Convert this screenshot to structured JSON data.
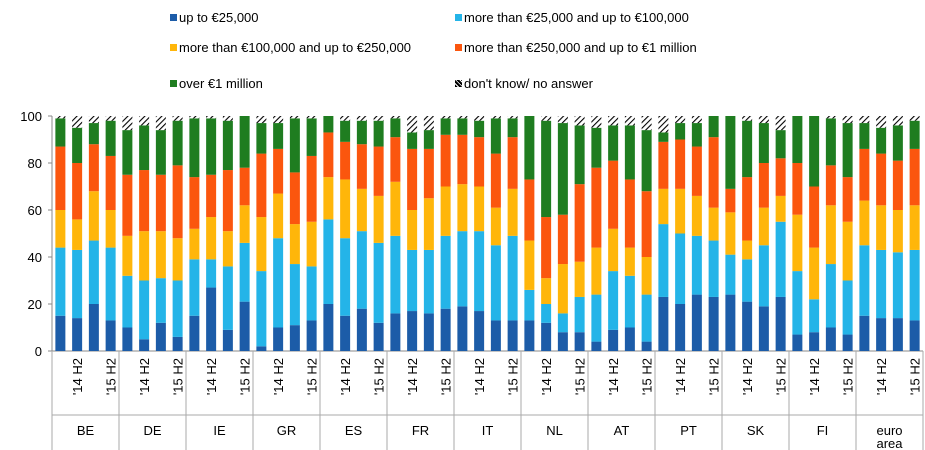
{
  "chart_data": {
    "type": "stacked_bar",
    "categories": [
      null,
      "'14 H2",
      null,
      "'15 H2",
      null,
      "'14 H2",
      null,
      "'15 H2",
      null,
      "'14 H2",
      null,
      "'15 H2",
      null,
      "'14 H2",
      null,
      "'15 H2",
      null,
      "'14 H2",
      null,
      "'15 H2",
      null,
      "'14 H2",
      null,
      "'15 H2",
      null,
      "'14 H2",
      null,
      "'15 H2",
      null,
      "'14 H2",
      null,
      "'15 H2",
      null,
      "'14 H2",
      null,
      "'15 H2",
      null,
      "'14 H2",
      null,
      "'15 H2",
      null,
      "'14 H2",
      null,
      "'15 H2",
      null,
      "'14 H2",
      null,
      "'15 H2",
      null,
      "'14 H2",
      null,
      "'15 H2"
    ],
    "groups": [
      "BE",
      "DE",
      "IE",
      "GR",
      "ES",
      "FR",
      "IT",
      "NL",
      "AT",
      "PT",
      "SK",
      "FI",
      "euro area"
    ],
    "ylim": [
      0,
      100
    ],
    "yticks": [
      0,
      20,
      40,
      60,
      80,
      100
    ],
    "grid": false,
    "series": [
      {
        "name": "up to €25,000",
        "color": "#1c5ca8",
        "values": [
          15,
          14,
          20,
          13,
          10,
          5,
          12,
          6,
          15,
          27,
          9,
          21,
          2,
          10,
          11,
          13,
          20,
          15,
          18,
          12,
          16,
          17,
          16,
          18,
          19,
          17,
          13,
          13,
          13,
          12,
          8,
          8,
          4,
          9,
          10,
          4,
          23,
          20,
          24,
          23,
          24,
          21,
          19,
          23,
          7,
          8,
          10,
          7,
          15,
          14,
          14,
          13
        ]
      },
      {
        "name": "more than €25,000 and up to €100,000",
        "color": "#24b4e8",
        "values": [
          29,
          29,
          27,
          31,
          22,
          25,
          19,
          24,
          24,
          12,
          27,
          25,
          32,
          38,
          26,
          23,
          36,
          33,
          33,
          34,
          33,
          26,
          27,
          31,
          32,
          34,
          32,
          36,
          13,
          8,
          8,
          15,
          20,
          25,
          22,
          20,
          31,
          30,
          25,
          24,
          17,
          18,
          26,
          32,
          27,
          14,
          27,
          23,
          30,
          29,
          28,
          30
        ]
      },
      {
        "name": "more than €100,000 and up to €250,000",
        "color": "#ffb60a",
        "values": [
          16,
          13,
          21,
          16,
          17,
          21,
          20,
          18,
          13,
          18,
          15,
          16,
          23,
          19,
          17,
          19,
          18,
          25,
          18,
          20,
          23,
          17,
          22,
          21,
          20,
          19,
          16,
          20,
          21,
          11,
          21,
          15,
          20,
          18,
          12,
          16,
          15,
          19,
          17,
          14,
          18,
          8,
          16,
          11,
          24,
          22,
          25,
          25,
          19,
          19,
          18,
          19
        ]
      },
      {
        "name": "more than €250,000 and up to €1 million",
        "color": "#fb560e",
        "values": [
          27,
          24,
          20,
          23,
          26,
          26,
          24,
          31,
          22,
          18,
          26,
          16,
          27,
          19,
          22,
          28,
          19,
          16,
          19,
          21,
          19,
          26,
          21,
          22,
          21,
          21,
          23,
          22,
          26,
          26,
          21,
          33,
          34,
          29,
          29,
          28,
          20,
          21,
          21,
          30,
          10,
          27,
          19,
          16,
          22,
          26,
          17,
          19,
          22,
          22,
          21,
          24
        ]
      },
      {
        "name": "over €1 million",
        "color": "#1f7d20",
        "values": [
          12,
          15,
          9,
          15,
          19,
          19,
          19,
          19,
          25,
          24,
          21,
          22,
          13,
          11,
          23,
          16,
          7,
          9,
          10,
          11,
          8,
          7,
          8,
          7,
          7,
          7,
          15,
          8,
          27,
          41,
          39,
          25,
          17,
          15,
          23,
          26,
          4,
          7,
          10,
          9,
          31,
          24,
          17,
          12,
          20,
          30,
          20,
          23,
          11,
          11,
          15,
          12
        ]
      },
      {
        "name": "don't know/ no answer",
        "color": "#000000",
        "hatch": true,
        "values": [
          1,
          5,
          3,
          2,
          6,
          4,
          6,
          2,
          1,
          1,
          2,
          0,
          3,
          3,
          1,
          1,
          0,
          2,
          2,
          2,
          1,
          7,
          6,
          1,
          1,
          2,
          1,
          1,
          0,
          2,
          3,
          4,
          5,
          4,
          4,
          6,
          7,
          3,
          3,
          0,
          0,
          2,
          3,
          6,
          0,
          0,
          1,
          3,
          3,
          5,
          4,
          2
        ]
      }
    ]
  }
}
